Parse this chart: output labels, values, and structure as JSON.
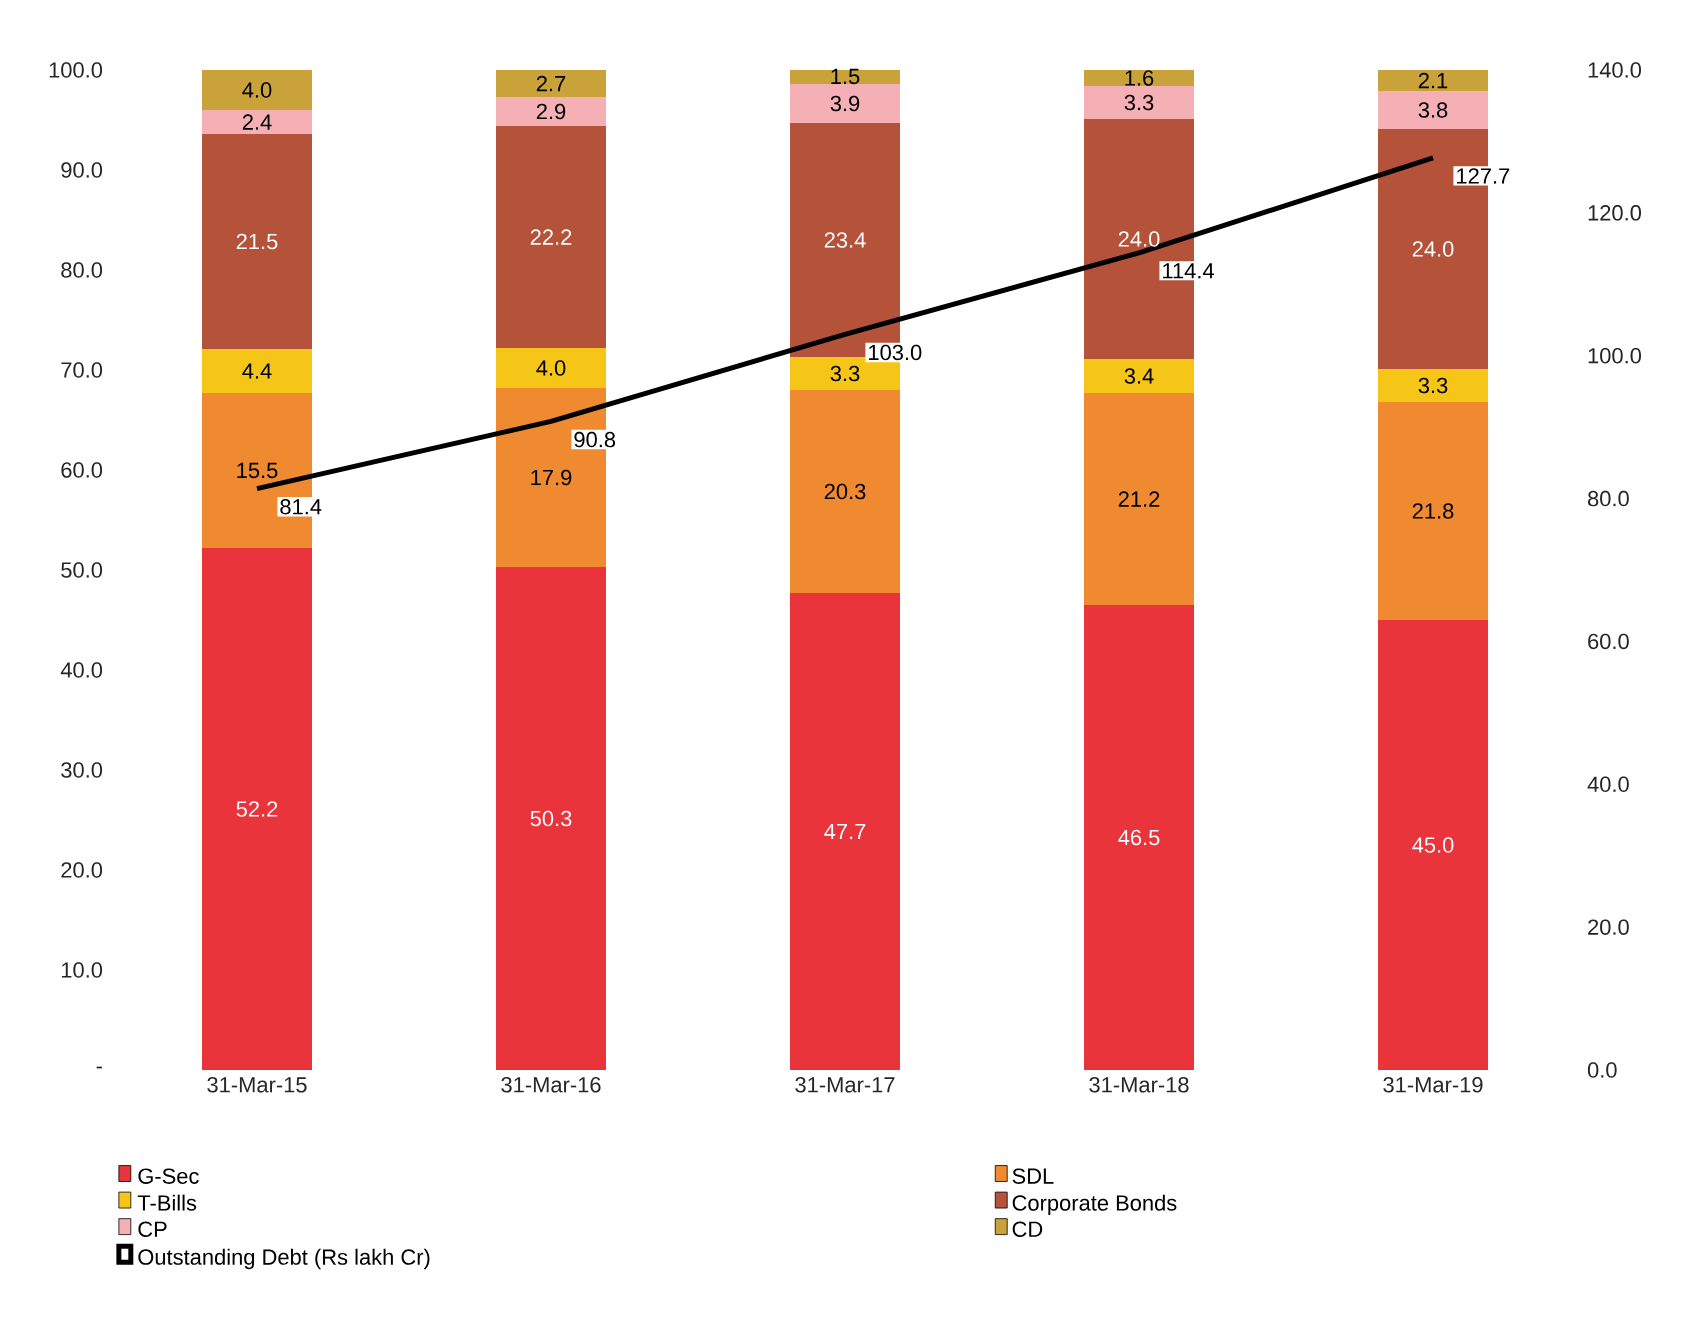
{
  "chart_data": {
    "type": "bar",
    "stacked": true,
    "legend": "bottom",
    "categories": [
      "31-Mar-15",
      "31-Mar-16",
      "31-Mar-17",
      "31-Mar-18",
      "31-Mar-19"
    ],
    "ylim": [
      0,
      100
    ],
    "yticks": [
      {
        "value": 0,
        "label": "-"
      },
      {
        "value": 10,
        "label": "10.0"
      },
      {
        "value": 20,
        "label": "20.0"
      },
      {
        "value": 30,
        "label": "30.0"
      },
      {
        "value": 40,
        "label": "40.0"
      },
      {
        "value": 50,
        "label": "50.0"
      },
      {
        "value": 60,
        "label": "60.0"
      },
      {
        "value": 70,
        "label": "70.0"
      },
      {
        "value": 80,
        "label": "80.0"
      },
      {
        "value": 90,
        "label": "90.0"
      },
      {
        "value": 100,
        "label": "100.0"
      }
    ],
    "y2lim": [
      0,
      140
    ],
    "y2ticks": [
      {
        "value": 0,
        "label": "0.0"
      },
      {
        "value": 20,
        "label": "20.0"
      },
      {
        "value": 40,
        "label": "40.0"
      },
      {
        "value": 60,
        "label": "60.0"
      },
      {
        "value": 80,
        "label": "80.0"
      },
      {
        "value": 100,
        "label": "100.0"
      },
      {
        "value": 120,
        "label": "120.0"
      },
      {
        "value": 140,
        "label": "140.0"
      }
    ],
    "series": [
      {
        "name": "G-Sec",
        "color": "#e8343a",
        "values": [
          52.2,
          50.3,
          47.7,
          46.5,
          45.0
        ],
        "value_labels": [
          "52.2",
          "50.3",
          "47.7",
          "46.5",
          "45.0"
        ]
      },
      {
        "name": "SDL",
        "color": "#f08a30",
        "values": [
          15.5,
          17.9,
          20.3,
          21.2,
          21.8
        ],
        "value_labels": [
          "15.5",
          "17.9",
          "20.3",
          "21.2",
          "21.8"
        ]
      },
      {
        "name": "T-Bills",
        "color": "#f5c518",
        "values": [
          4.4,
          4.0,
          3.3,
          3.4,
          3.3
        ],
        "value_labels": [
          "4.4",
          "4.0",
          "3.3",
          "3.4",
          "3.3"
        ]
      },
      {
        "name": "Corporate Bonds",
        "color": "#b5533a",
        "values": [
          21.5,
          22.2,
          23.4,
          24.0,
          24.0
        ],
        "value_labels": [
          "21.5",
          "22.2",
          "23.4",
          "24.0",
          "24.0"
        ]
      },
      {
        "name": "CP",
        "color": "#f4b0b5",
        "values": [
          2.4,
          2.9,
          3.9,
          3.3,
          3.8
        ],
        "value_labels": [
          "2.4",
          "2.9",
          "3.9",
          "3.3",
          "3.8"
        ]
      },
      {
        "name": "CD",
        "color": "#c9a23a",
        "values": [
          4.0,
          2.7,
          1.5,
          1.6,
          2.1
        ],
        "value_labels": [
          "4.0",
          "2.7",
          "1.5",
          "1.6",
          "2.1"
        ]
      },
      {
        "name": "Outstanding Debt (Rs lakh Cr)",
        "type": "line",
        "axis": "y2",
        "color": "#000000",
        "values": [
          81.4,
          90.8,
          103.0,
          114.4,
          127.7
        ],
        "value_labels": [
          "81.4",
          "90.8",
          "103.0",
          "114.4",
          "127.7"
        ]
      }
    ]
  }
}
